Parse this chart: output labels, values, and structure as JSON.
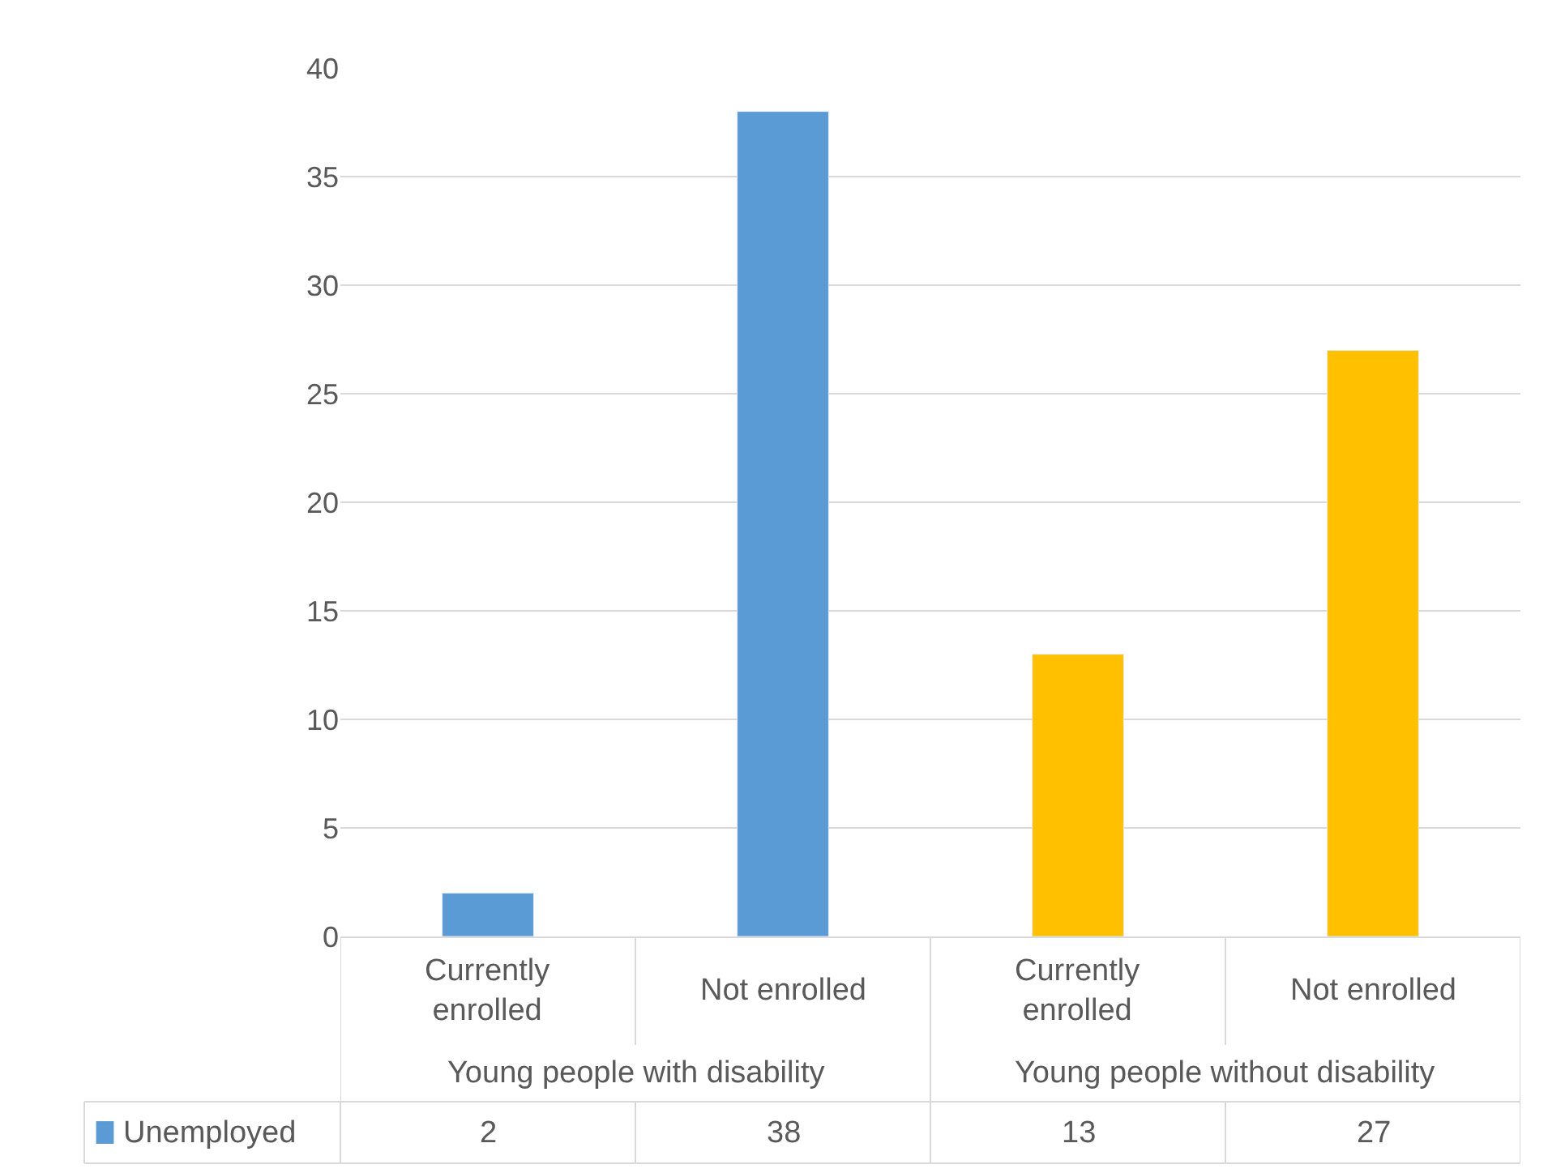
{
  "chart_data": {
    "type": "bar",
    "categories": [
      "Currently enrolled",
      "Not enrolled",
      "Currently enrolled",
      "Not enrolled"
    ],
    "series": [
      {
        "name": "Unemployed",
        "colors": [
          "#5b9bd5",
          "#5b9bd5",
          "#ffc000",
          "#ffc000"
        ],
        "color": "#5b9bd5",
        "values": [
          2,
          38,
          13,
          27
        ]
      }
    ],
    "annotations": [
      "Young people with disability",
      "Young people without disability"
    ],
    "ylim": [
      0,
      40
    ],
    "yticks": [
      0,
      5,
      10,
      15,
      20,
      25,
      30,
      35,
      40
    ],
    "grid": "y",
    "data_labels": true
  }
}
